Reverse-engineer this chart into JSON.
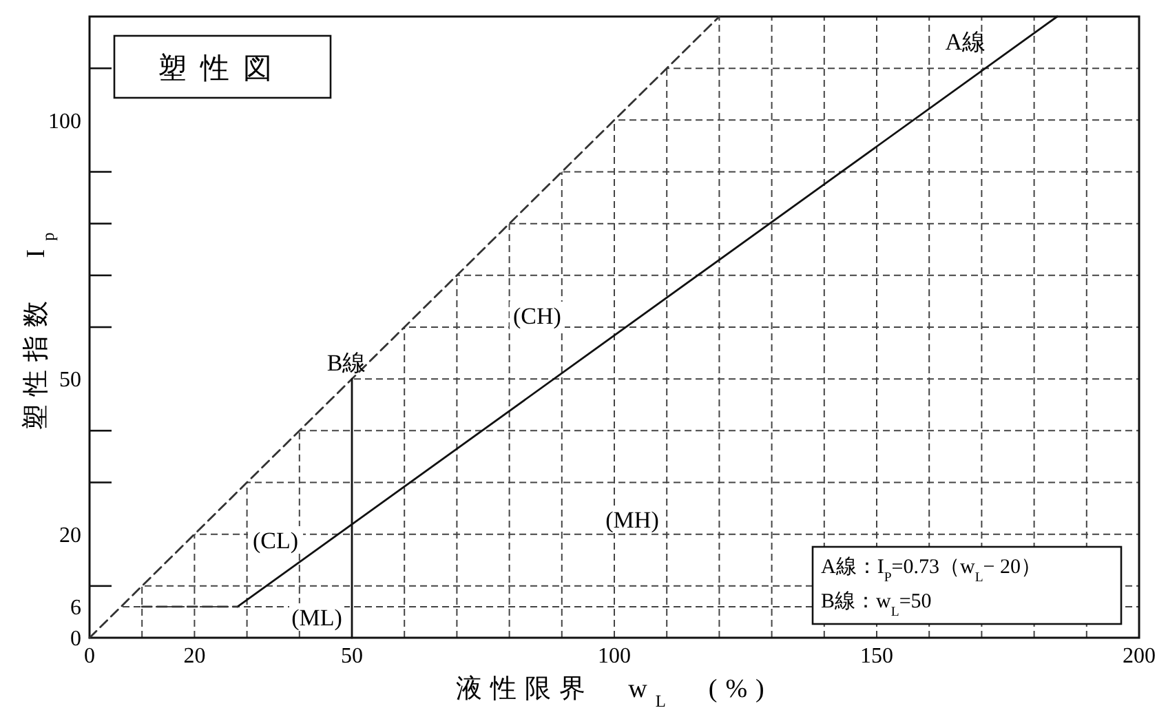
{
  "chart_data": {
    "type": "line",
    "title": "塑性図",
    "xlabel": "液性限界　w$_{L}$　(%)",
    "ylabel": "塑性指数　I$_{p}$",
    "xlim": [
      0,
      200
    ],
    "ylim": [
      0,
      120
    ],
    "xticks": [
      0,
      {
        "value": 10,
        "label": null
      },
      20,
      {
        "value": 30,
        "label": null
      },
      {
        "value": 40,
        "label": null
      },
      50,
      {
        "value": 60,
        "label": null
      },
      {
        "value": 70,
        "label": null
      },
      {
        "value": 80,
        "label": null
      },
      {
        "value": 90,
        "label": null
      },
      100,
      {
        "value": 110,
        "label": null
      },
      {
        "value": 120,
        "label": null
      },
      {
        "value": 130,
        "label": null
      },
      {
        "value": 140,
        "label": null
      },
      150,
      {
        "value": 160,
        "label": null
      },
      {
        "value": 170,
        "label": null
      },
      {
        "value": 180,
        "label": null
      },
      {
        "value": 190,
        "label": null
      },
      200
    ],
    "yticks": [
      0,
      6,
      {
        "value": 10,
        "label": null
      },
      20,
      {
        "value": 30,
        "label": null
      },
      {
        "value": 40,
        "label": null
      },
      50,
      {
        "value": 60,
        "label": null
      },
      {
        "value": 70,
        "label": null
      },
      {
        "value": 80,
        "label": null
      },
      {
        "value": 90,
        "label": null
      },
      100,
      {
        "value": 110,
        "label": null
      }
    ],
    "grid": true,
    "series": [
      {
        "color": "#333333",
        "x": [
          0,
          120
        ],
        "values": [
          0,
          120
        ],
        "line_style": "dashed"
      },
      {
        "name": "A線",
        "color": "#111111",
        "x": [
          28.2,
          184.4
        ],
        "values": [
          6,
          120
        ],
        "line_style": "solid"
      },
      {
        "color": "#333333",
        "x": [
          10,
          28.2
        ],
        "values": [
          6,
          6
        ],
        "line_style": "dashed"
      },
      {
        "name": "B線",
        "color": "#111111",
        "x": [
          50,
          50
        ],
        "values": [
          0,
          50
        ],
        "line_style": "solid"
      }
    ],
    "annotations": [
      "(CH)",
      "(CL)",
      "(MH)",
      "(ML)",
      "A線：I$_{P}$=0.73（w$_{L}$− 20）",
      "B線：w$_{L}$=50"
    ]
  }
}
